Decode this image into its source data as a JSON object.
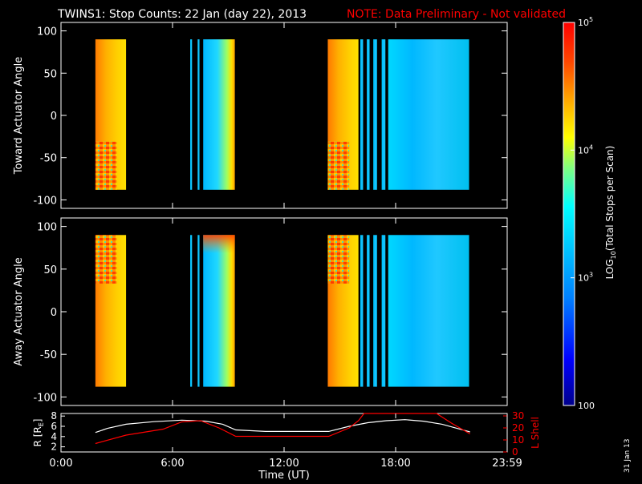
{
  "header": {
    "title": "TWINS1: Stop Counts: 22 Jan (day  22), 2013",
    "note": "NOTE: Data Preliminary - Not validated"
  },
  "footer": {
    "run_date": "31 Jan 13"
  },
  "colors": {
    "background": "#000000",
    "axes": "#ffffff",
    "note": "#ff0000",
    "r_line": "#ffffff",
    "lshell_line": "#ff0000"
  },
  "colorbar": {
    "label": "LOG10(Total Stops per Scan)",
    "label_main": "LOG",
    "label_sub": "10",
    "label_rest": "(Total Stops per Scan)",
    "scale": "log",
    "range": [
      100,
      100000
    ],
    "ticks": [
      {
        "value": 100,
        "label": "100"
      },
      {
        "value": 1000,
        "label": "10",
        "exp": "3"
      },
      {
        "value": 10000,
        "label": "10",
        "exp": "4"
      },
      {
        "value": 100000,
        "label": "10",
        "exp": "5"
      }
    ],
    "colormap": [
      "#00008b",
      "#0000ff",
      "#0080ff",
      "#00bfff",
      "#00ffff",
      "#80ff80",
      "#ffff00",
      "#ffa500",
      "#ff4500",
      "#ff0000"
    ]
  },
  "chart_data": [
    {
      "type": "heatmap",
      "ylabel": "Toward Actuator Angle",
      "xlim": [
        0,
        24
      ],
      "ylim": [
        -110,
        110
      ],
      "yticks": [
        -100,
        -50,
        0,
        50,
        100
      ],
      "y_extent": [
        -88,
        90
      ],
      "blocks": [
        {
          "t0": 1.85,
          "t1": 3.5,
          "pattern": "hot",
          "log_level": 4.4
        },
        {
          "t0": 6.95,
          "t1": 7.05,
          "pattern": "cool",
          "log_level": 3.1
        },
        {
          "t0": 7.35,
          "t1": 7.45,
          "pattern": "cool",
          "log_level": 3.1
        },
        {
          "t0": 7.65,
          "t1": 9.35,
          "pattern": "gradient",
          "log_level": 3.3
        },
        {
          "t0": 14.35,
          "t1": 16.0,
          "pattern": "hot",
          "log_level": 4.4
        },
        {
          "t0": 16.1,
          "t1": 16.25,
          "pattern": "cool",
          "log_level": 3.0
        },
        {
          "t0": 16.45,
          "t1": 16.6,
          "pattern": "cool",
          "log_level": 3.0
        },
        {
          "t0": 16.8,
          "t1": 17.0,
          "pattern": "cool",
          "log_level": 3.0
        },
        {
          "t0": 17.25,
          "t1": 17.45,
          "pattern": "cool",
          "log_level": 3.0
        },
        {
          "t0": 17.6,
          "t1": 21.95,
          "pattern": "cool",
          "log_level": 3.0
        }
      ]
    },
    {
      "type": "heatmap",
      "ylabel": "Away Actuator Angle",
      "xlim": [
        0,
        24
      ],
      "ylim": [
        -110,
        110
      ],
      "yticks": [
        -100,
        -50,
        0,
        50,
        100
      ],
      "y_extent": [
        -88,
        90
      ],
      "blocks": [
        {
          "t0": 1.85,
          "t1": 3.5,
          "pattern": "hot",
          "log_level": 4.4
        },
        {
          "t0": 6.95,
          "t1": 7.05,
          "pattern": "cool",
          "log_level": 3.1
        },
        {
          "t0": 7.35,
          "t1": 7.45,
          "pattern": "cool",
          "log_level": 3.1
        },
        {
          "t0": 7.65,
          "t1": 9.35,
          "pattern": "gradient_top_hot",
          "log_level": 3.3
        },
        {
          "t0": 14.35,
          "t1": 16.0,
          "pattern": "hot",
          "log_level": 4.4
        },
        {
          "t0": 16.1,
          "t1": 16.25,
          "pattern": "cool",
          "log_level": 3.0
        },
        {
          "t0": 16.45,
          "t1": 16.6,
          "pattern": "cool",
          "log_level": 3.0
        },
        {
          "t0": 16.8,
          "t1": 17.0,
          "pattern": "cool",
          "log_level": 3.0
        },
        {
          "t0": 17.25,
          "t1": 17.45,
          "pattern": "cool",
          "log_level": 3.0
        },
        {
          "t0": 17.6,
          "t1": 21.95,
          "pattern": "cool",
          "log_level": 3.0
        }
      ]
    },
    {
      "type": "line",
      "xlabel": "Time (UT)",
      "xlim": [
        0,
        24
      ],
      "xticks": [
        {
          "value": 0,
          "label": "0:00"
        },
        {
          "value": 6,
          "label": "6:00"
        },
        {
          "value": 12,
          "label": "12:00"
        },
        {
          "value": 18,
          "label": "18:00"
        },
        {
          "value": 24,
          "label": "23:59"
        }
      ],
      "left_axis": {
        "label": "R [RE]",
        "label_main": "R [R",
        "label_sub": "E",
        "label_end": "]",
        "ylim": [
          1,
          8.5
        ],
        "ticks": [
          2,
          4,
          6,
          8
        ]
      },
      "right_axis": {
        "label": "L Shell",
        "ylim": [
          0,
          32
        ],
        "ticks": [
          0,
          10,
          20,
          30
        ]
      },
      "series": [
        {
          "axis": "left",
          "x": [
            1.85,
            2.5,
            3.5,
            5.0,
            6.5,
            7.8,
            8.7,
            9.4,
            11.0,
            13.0,
            14.4,
            15.5,
            16.5,
            17.5,
            18.5,
            19.5,
            20.5,
            21.5,
            22.0
          ],
          "y": [
            4.8,
            5.6,
            6.4,
            6.9,
            7.2,
            7.0,
            6.4,
            5.3,
            5.0,
            5.0,
            5.0,
            6.0,
            6.7,
            7.1,
            7.3,
            7.0,
            6.4,
            5.4,
            4.9
          ]
        },
        {
          "axis": "right",
          "x": [
            1.85,
            3.5,
            5.5,
            6.5,
            7.5,
            8.5,
            9.4,
            11.0,
            13.0,
            14.4,
            15.5,
            16.0,
            16.3,
            20.2,
            21.0,
            22.0
          ],
          "y": [
            7.0,
            14.0,
            19.0,
            25.0,
            26.0,
            20.0,
            13.0,
            13.0,
            13.0,
            13.0,
            20.0,
            26.0,
            32.0,
            32.0,
            24.0,
            15.0
          ]
        }
      ]
    }
  ]
}
